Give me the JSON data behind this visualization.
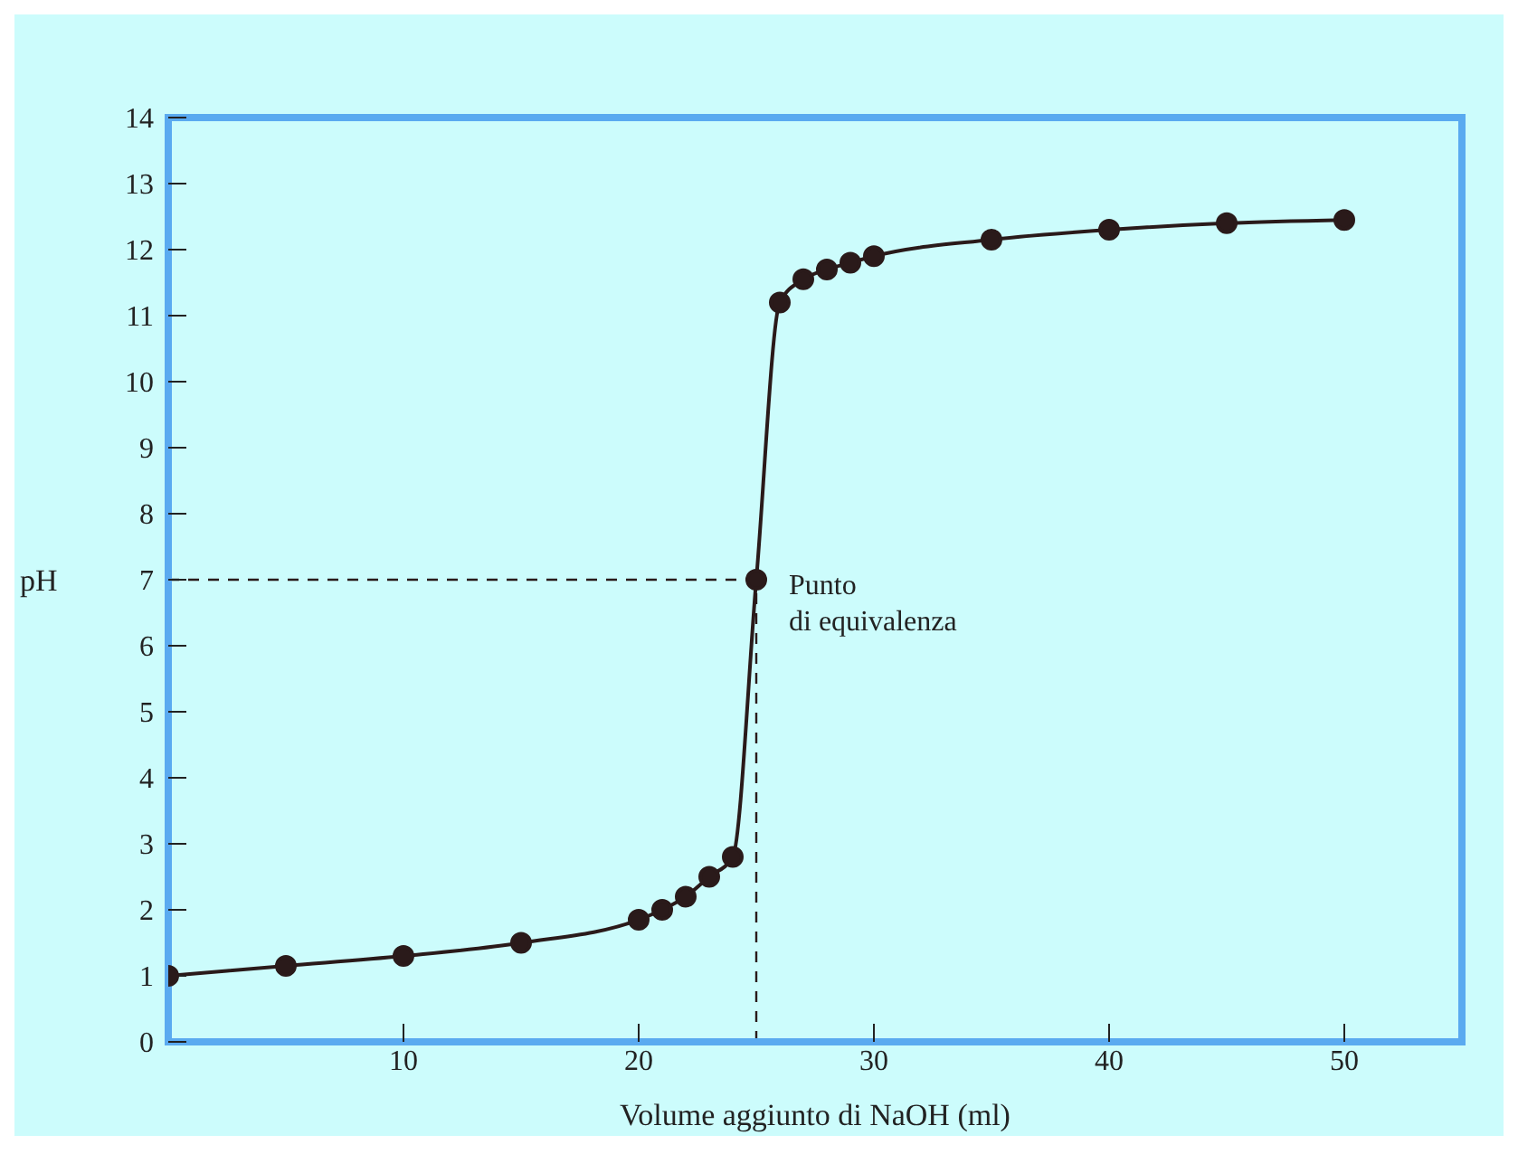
{
  "chart_data": {
    "type": "line",
    "xlabel": "Volume aggiunto di NaOH (ml)",
    "ylabel": "pH",
    "x": [
      0,
      5,
      10,
      15,
      20,
      21,
      22,
      23,
      24,
      25,
      26,
      27,
      28,
      29,
      30,
      35,
      40,
      45,
      50
    ],
    "series": [
      {
        "color": "#2a1a1a",
        "values": [
          1.0,
          1.15,
          1.3,
          1.5,
          1.85,
          2.0,
          2.2,
          2.5,
          2.8,
          7,
          11.2,
          11.55,
          11.7,
          11.8,
          11.9,
          12.15,
          12.3,
          12.4,
          12.45
        ]
      }
    ],
    "xlim": [
      0,
      55
    ],
    "xticks": [
      10,
      20,
      30,
      40,
      50
    ],
    "ylim": [
      0,
      14
    ],
    "yticks": [
      0,
      1,
      2,
      3,
      4,
      5,
      6,
      7,
      8,
      9,
      10,
      11,
      12,
      13,
      14
    ],
    "ref_lines": [
      {
        "axis": "y",
        "value": 7,
        "line_style": "dashed",
        "color": "#2a1a1a"
      },
      {
        "axis": "x",
        "value": 25,
        "line_style": "dashed",
        "color": "#2a1a1a"
      }
    ],
    "annotations": [
      {
        "text": "Punto\ndi equivalenza",
        "x": 25,
        "y": 7
      }
    ],
    "marker": "circle",
    "line_style": "solid",
    "grid": false,
    "legend": false
  }
}
